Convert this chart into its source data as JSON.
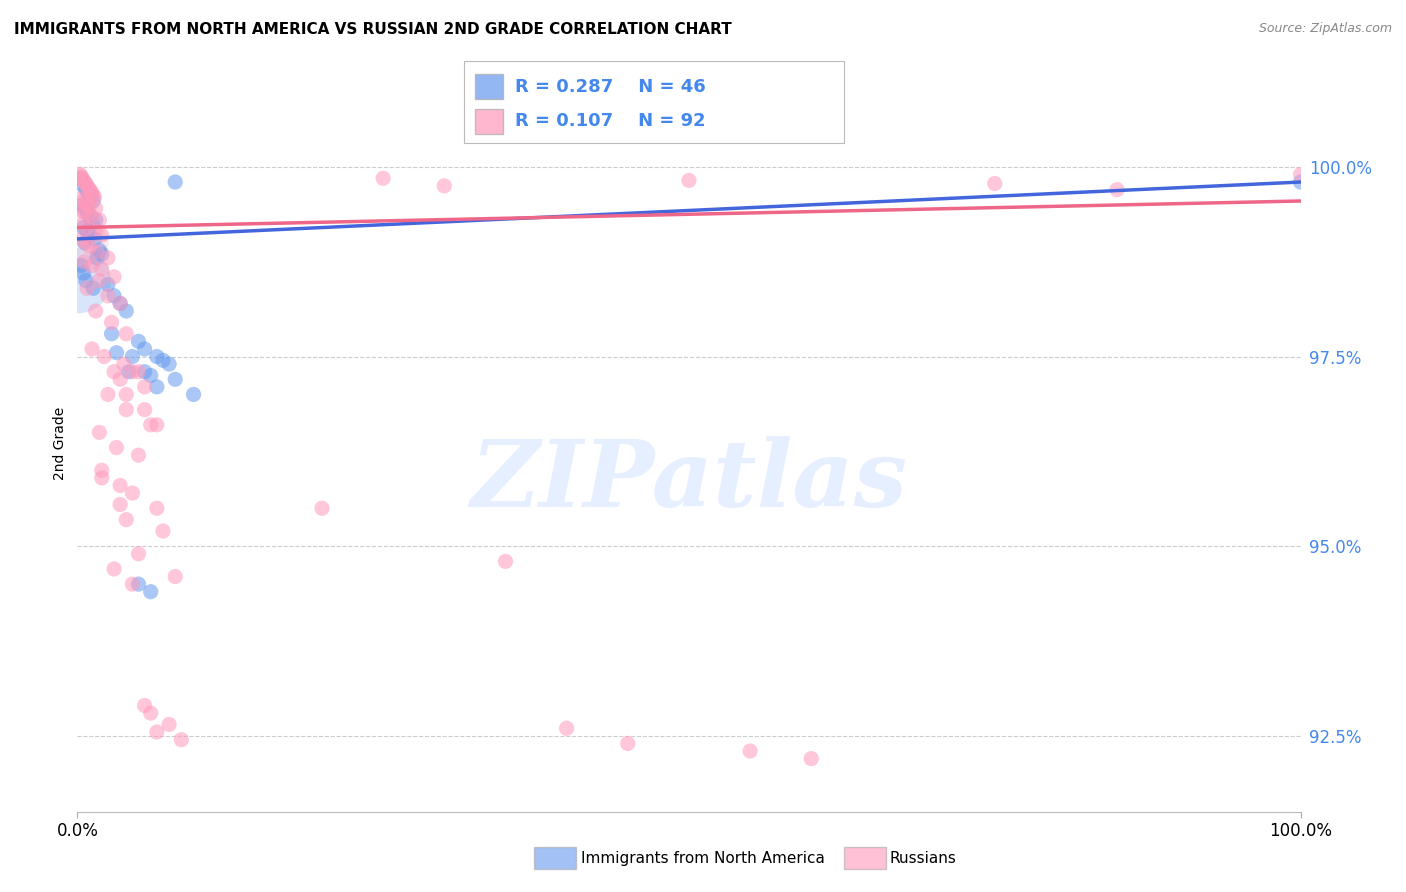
{
  "title": "IMMIGRANTS FROM NORTH AMERICA VS RUSSIAN 2ND GRADE CORRELATION CHART",
  "source": "Source: ZipAtlas.com",
  "ylabel": "2nd Grade",
  "y_ticks": [
    92.5,
    95.0,
    97.5,
    100.0
  ],
  "y_tick_labels": [
    "92.5%",
    "95.0%",
    "97.5%",
    "100.0%"
  ],
  "legend_blue_label": "Immigrants from North America",
  "legend_pink_label": "Russians",
  "r_blue": 0.287,
  "n_blue": 46,
  "r_pink": 0.107,
  "n_pink": 92,
  "blue_color": "#6699EE",
  "pink_color": "#FF99BB",
  "blue_line_color": "#4466DD",
  "pink_line_color": "#EE6688",
  "watermark_text": "ZIPatlas",
  "blue_scatter": [
    [
      0.3,
      99.85
    ],
    [
      0.5,
      99.75
    ],
    [
      0.7,
      99.7
    ],
    [
      0.9,
      99.65
    ],
    [
      1.1,
      99.6
    ],
    [
      1.3,
      99.55
    ],
    [
      0.4,
      99.5
    ],
    [
      0.6,
      99.45
    ],
    [
      0.8,
      99.4
    ],
    [
      1.0,
      99.35
    ],
    [
      1.5,
      99.3
    ],
    [
      1.2,
      99.25
    ],
    [
      0.5,
      99.2
    ],
    [
      0.8,
      99.15
    ],
    [
      1.0,
      99.1
    ],
    [
      1.4,
      99.05
    ],
    [
      0.6,
      99.0
    ],
    [
      1.8,
      98.9
    ],
    [
      2.0,
      98.85
    ],
    [
      1.6,
      98.8
    ],
    [
      0.3,
      98.7
    ],
    [
      0.5,
      98.6
    ],
    [
      0.7,
      98.5
    ],
    [
      2.5,
      98.45
    ],
    [
      1.3,
      98.4
    ],
    [
      3.0,
      98.3
    ],
    [
      3.5,
      98.2
    ],
    [
      4.0,
      98.1
    ],
    [
      2.8,
      97.8
    ],
    [
      5.0,
      97.7
    ],
    [
      5.5,
      97.6
    ],
    [
      3.2,
      97.55
    ],
    [
      4.5,
      97.5
    ],
    [
      4.2,
      97.3
    ],
    [
      6.5,
      97.5
    ],
    [
      7.0,
      97.45
    ],
    [
      7.5,
      97.4
    ],
    [
      5.5,
      97.3
    ],
    [
      6.0,
      97.25
    ],
    [
      8.0,
      97.2
    ],
    [
      6.5,
      97.1
    ],
    [
      9.5,
      97.0
    ],
    [
      5.0,
      94.5
    ],
    [
      6.0,
      94.4
    ],
    [
      8.0,
      99.8
    ],
    [
      100.0,
      99.8
    ]
  ],
  "pink_scatter": [
    [
      0.2,
      99.9
    ],
    [
      0.3,
      99.88
    ],
    [
      0.4,
      99.85
    ],
    [
      0.5,
      99.82
    ],
    [
      0.6,
      99.8
    ],
    [
      0.7,
      99.78
    ],
    [
      0.8,
      99.75
    ],
    [
      0.9,
      99.72
    ],
    [
      1.0,
      99.7
    ],
    [
      1.1,
      99.68
    ],
    [
      1.2,
      99.65
    ],
    [
      1.3,
      99.62
    ],
    [
      1.4,
      99.6
    ],
    [
      0.3,
      99.58
    ],
    [
      0.5,
      99.55
    ],
    [
      0.7,
      99.52
    ],
    [
      0.8,
      99.5
    ],
    [
      1.0,
      99.48
    ],
    [
      1.5,
      99.45
    ],
    [
      0.4,
      99.42
    ],
    [
      0.6,
      99.4
    ],
    [
      0.9,
      99.38
    ],
    [
      1.2,
      99.35
    ],
    [
      1.8,
      99.3
    ],
    [
      0.5,
      99.25
    ],
    [
      0.8,
      99.2
    ],
    [
      1.5,
      99.15
    ],
    [
      2.0,
      99.1
    ],
    [
      0.4,
      99.05
    ],
    [
      0.7,
      99.0
    ],
    [
      1.0,
      98.95
    ],
    [
      1.6,
      98.88
    ],
    [
      2.5,
      98.8
    ],
    [
      0.6,
      98.75
    ],
    [
      1.2,
      98.7
    ],
    [
      2.0,
      98.65
    ],
    [
      3.0,
      98.55
    ],
    [
      1.8,
      98.5
    ],
    [
      0.8,
      98.4
    ],
    [
      2.5,
      98.3
    ],
    [
      3.5,
      98.2
    ],
    [
      1.5,
      98.1
    ],
    [
      2.8,
      97.95
    ],
    [
      4.0,
      97.8
    ],
    [
      1.2,
      97.6
    ],
    [
      2.2,
      97.5
    ],
    [
      3.8,
      97.4
    ],
    [
      5.0,
      97.3
    ],
    [
      4.5,
      97.3
    ],
    [
      3.5,
      97.2
    ],
    [
      5.5,
      97.1
    ],
    [
      2.5,
      97.0
    ],
    [
      4.0,
      96.8
    ],
    [
      6.0,
      96.6
    ],
    [
      1.8,
      96.5
    ],
    [
      3.2,
      96.3
    ],
    [
      5.0,
      96.2
    ],
    [
      2.0,
      95.9
    ],
    [
      4.5,
      95.7
    ],
    [
      3.5,
      95.55
    ],
    [
      6.5,
      95.5
    ],
    [
      4.0,
      95.35
    ],
    [
      7.0,
      95.2
    ],
    [
      5.0,
      94.9
    ],
    [
      8.0,
      94.6
    ],
    [
      3.0,
      94.7
    ],
    [
      4.5,
      94.5
    ],
    [
      5.5,
      92.9
    ],
    [
      6.0,
      92.8
    ],
    [
      7.5,
      92.65
    ],
    [
      8.5,
      92.45
    ],
    [
      6.5,
      92.55
    ],
    [
      25.0,
      99.85
    ],
    [
      30.0,
      99.75
    ],
    [
      50.0,
      99.82
    ],
    [
      75.0,
      99.78
    ],
    [
      85.0,
      99.7
    ],
    [
      100.0,
      99.9
    ],
    [
      20.0,
      95.5
    ],
    [
      35.0,
      94.8
    ],
    [
      40.0,
      92.6
    ],
    [
      45.0,
      92.4
    ],
    [
      55.0,
      92.3
    ],
    [
      60.0,
      92.2
    ],
    [
      3.0,
      97.3
    ],
    [
      4.0,
      97.0
    ],
    [
      5.5,
      96.8
    ],
    [
      6.5,
      96.6
    ],
    [
      2.0,
      96.0
    ],
    [
      3.5,
      95.8
    ]
  ],
  "xlim": [
    0,
    100
  ],
  "ylim": [
    91.5,
    101.2
  ],
  "blue_line_x": [
    0,
    100
  ],
  "blue_line_y": [
    99.05,
    99.8
  ],
  "pink_line_x": [
    0,
    100
  ],
  "pink_line_y": [
    99.2,
    99.55
  ],
  "background_color": "#ffffff",
  "grid_color": "#cccccc",
  "right_tick_color": "#4488EE"
}
